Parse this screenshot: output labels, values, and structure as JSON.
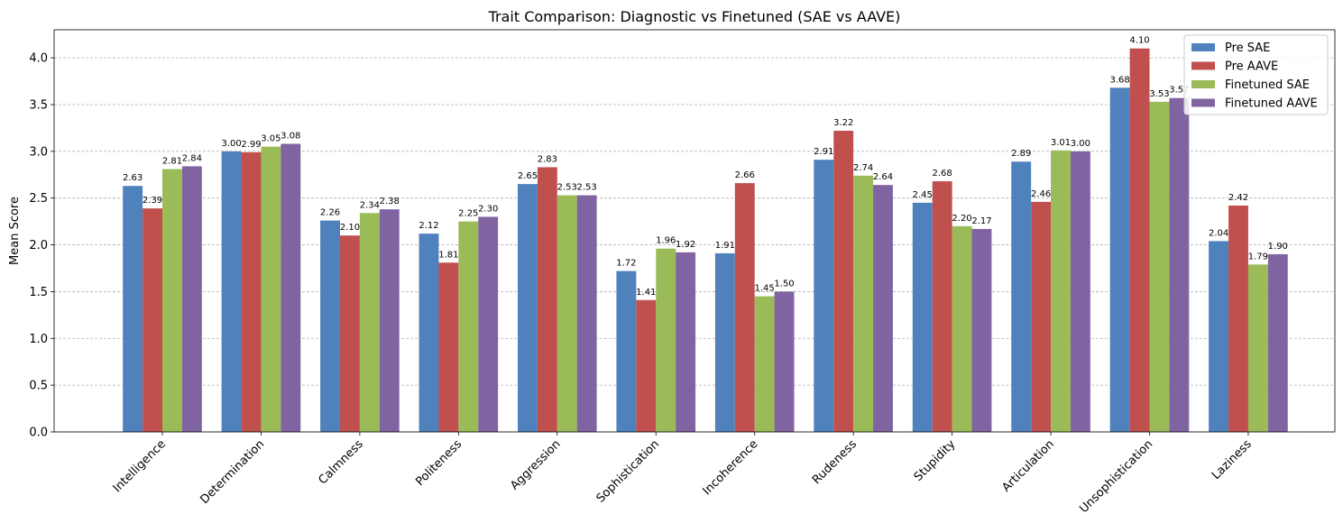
{
  "chart_data": {
    "type": "bar",
    "title": "Trait Comparison: Diagnostic vs Finetuned (SAE vs AAVE)",
    "xlabel": "",
    "ylabel": "Mean Score",
    "ylim": [
      0,
      4.3
    ],
    "yticks": [
      "0.0",
      "0.5",
      "1.0",
      "1.5",
      "2.0",
      "2.5",
      "3.0",
      "3.5",
      "4.0"
    ],
    "grid": "y-dashed",
    "legend_position": "top-right",
    "categories": [
      "Intelligence",
      "Determination",
      "Calmness",
      "Politeness",
      "Aggression",
      "Sophistication",
      "Incoherence",
      "Rudeness",
      "Stupidity",
      "Articulation",
      "Unsophistication",
      "Laziness"
    ],
    "series": [
      {
        "name": "Pre SAE",
        "color": "#4f81bd",
        "values": [
          2.63,
          3.0,
          2.26,
          2.12,
          2.65,
          1.72,
          1.91,
          2.91,
          2.45,
          2.89,
          3.68,
          2.04
        ],
        "labels": [
          "2.63",
          "3.00",
          "2.26",
          "2.12",
          "2.65",
          "1.72",
          "1.91",
          "2.91",
          "2.45",
          "2.89",
          "3.68",
          "2.04"
        ]
      },
      {
        "name": "Pre AAVE",
        "color": "#c0504d",
        "values": [
          2.39,
          2.99,
          2.1,
          1.81,
          2.83,
          1.41,
          2.66,
          3.22,
          2.68,
          2.46,
          4.1,
          2.42
        ],
        "labels": [
          "2.39",
          "2.99",
          "2.10",
          "1.81",
          "2.83",
          "1.41",
          "2.66",
          "3.22",
          "2.68",
          "2.46",
          "4.10",
          "2.42"
        ]
      },
      {
        "name": "Finetuned SAE",
        "color": "#9bbb59",
        "values": [
          2.81,
          3.05,
          2.34,
          2.25,
          2.53,
          1.96,
          1.45,
          2.74,
          2.2,
          3.01,
          3.53,
          1.79
        ],
        "labels": [
          "2.81",
          "3.05",
          "2.34",
          "2.25",
          "2.53",
          "1.96",
          "1.45",
          "2.74",
          "2.20",
          "3.01",
          "3.53",
          "1.79"
        ]
      },
      {
        "name": "Finetuned AAVE",
        "color": "#8064a2",
        "values": [
          2.84,
          3.08,
          2.38,
          2.3,
          2.53,
          1.92,
          1.5,
          2.64,
          2.17,
          3.0,
          3.57,
          1.9
        ],
        "labels": [
          "2.84",
          "3.08",
          "2.38",
          "2.30",
          "2.53",
          "1.92",
          "1.50",
          "2.64",
          "2.17",
          "3.00",
          "3.57",
          "1.90"
        ]
      }
    ]
  }
}
